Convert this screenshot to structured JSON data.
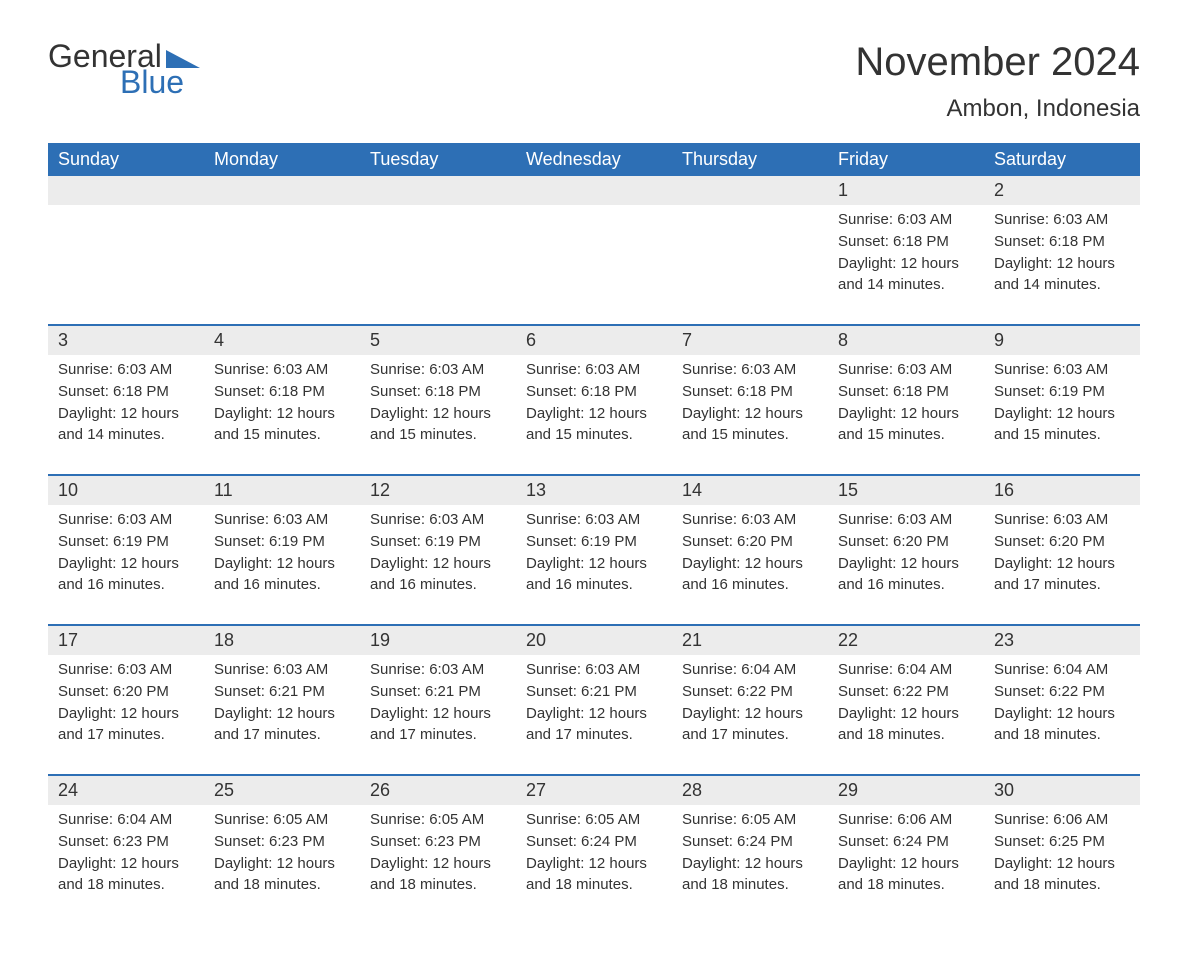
{
  "logo": {
    "general": "General",
    "blue": "Blue",
    "shape_color": "#2d6fb5"
  },
  "title": "November 2024",
  "location": "Ambon, Indonesia",
  "header_bg": "#2d6fb5",
  "weekdays": [
    "Sunday",
    "Monday",
    "Tuesday",
    "Wednesday",
    "Thursday",
    "Friday",
    "Saturday"
  ],
  "weeks": [
    {
      "days": [
        {
          "num": "",
          "sunrise": "",
          "sunset": "",
          "daylight": ""
        },
        {
          "num": "",
          "sunrise": "",
          "sunset": "",
          "daylight": ""
        },
        {
          "num": "",
          "sunrise": "",
          "sunset": "",
          "daylight": ""
        },
        {
          "num": "",
          "sunrise": "",
          "sunset": "",
          "daylight": ""
        },
        {
          "num": "",
          "sunrise": "",
          "sunset": "",
          "daylight": ""
        },
        {
          "num": "1",
          "sunrise": "Sunrise: 6:03 AM",
          "sunset": "Sunset: 6:18 PM",
          "daylight": "Daylight: 12 hours and 14 minutes."
        },
        {
          "num": "2",
          "sunrise": "Sunrise: 6:03 AM",
          "sunset": "Sunset: 6:18 PM",
          "daylight": "Daylight: 12 hours and 14 minutes."
        }
      ]
    },
    {
      "days": [
        {
          "num": "3",
          "sunrise": "Sunrise: 6:03 AM",
          "sunset": "Sunset: 6:18 PM",
          "daylight": "Daylight: 12 hours and 14 minutes."
        },
        {
          "num": "4",
          "sunrise": "Sunrise: 6:03 AM",
          "sunset": "Sunset: 6:18 PM",
          "daylight": "Daylight: 12 hours and 15 minutes."
        },
        {
          "num": "5",
          "sunrise": "Sunrise: 6:03 AM",
          "sunset": "Sunset: 6:18 PM",
          "daylight": "Daylight: 12 hours and 15 minutes."
        },
        {
          "num": "6",
          "sunrise": "Sunrise: 6:03 AM",
          "sunset": "Sunset: 6:18 PM",
          "daylight": "Daylight: 12 hours and 15 minutes."
        },
        {
          "num": "7",
          "sunrise": "Sunrise: 6:03 AM",
          "sunset": "Sunset: 6:18 PM",
          "daylight": "Daylight: 12 hours and 15 minutes."
        },
        {
          "num": "8",
          "sunrise": "Sunrise: 6:03 AM",
          "sunset": "Sunset: 6:18 PM",
          "daylight": "Daylight: 12 hours and 15 minutes."
        },
        {
          "num": "9",
          "sunrise": "Sunrise: 6:03 AM",
          "sunset": "Sunset: 6:19 PM",
          "daylight": "Daylight: 12 hours and 15 minutes."
        }
      ]
    },
    {
      "days": [
        {
          "num": "10",
          "sunrise": "Sunrise: 6:03 AM",
          "sunset": "Sunset: 6:19 PM",
          "daylight": "Daylight: 12 hours and 16 minutes."
        },
        {
          "num": "11",
          "sunrise": "Sunrise: 6:03 AM",
          "sunset": "Sunset: 6:19 PM",
          "daylight": "Daylight: 12 hours and 16 minutes."
        },
        {
          "num": "12",
          "sunrise": "Sunrise: 6:03 AM",
          "sunset": "Sunset: 6:19 PM",
          "daylight": "Daylight: 12 hours and 16 minutes."
        },
        {
          "num": "13",
          "sunrise": "Sunrise: 6:03 AM",
          "sunset": "Sunset: 6:19 PM",
          "daylight": "Daylight: 12 hours and 16 minutes."
        },
        {
          "num": "14",
          "sunrise": "Sunrise: 6:03 AM",
          "sunset": "Sunset: 6:20 PM",
          "daylight": "Daylight: 12 hours and 16 minutes."
        },
        {
          "num": "15",
          "sunrise": "Sunrise: 6:03 AM",
          "sunset": "Sunset: 6:20 PM",
          "daylight": "Daylight: 12 hours and 16 minutes."
        },
        {
          "num": "16",
          "sunrise": "Sunrise: 6:03 AM",
          "sunset": "Sunset: 6:20 PM",
          "daylight": "Daylight: 12 hours and 17 minutes."
        }
      ]
    },
    {
      "days": [
        {
          "num": "17",
          "sunrise": "Sunrise: 6:03 AM",
          "sunset": "Sunset: 6:20 PM",
          "daylight": "Daylight: 12 hours and 17 minutes."
        },
        {
          "num": "18",
          "sunrise": "Sunrise: 6:03 AM",
          "sunset": "Sunset: 6:21 PM",
          "daylight": "Daylight: 12 hours and 17 minutes."
        },
        {
          "num": "19",
          "sunrise": "Sunrise: 6:03 AM",
          "sunset": "Sunset: 6:21 PM",
          "daylight": "Daylight: 12 hours and 17 minutes."
        },
        {
          "num": "20",
          "sunrise": "Sunrise: 6:03 AM",
          "sunset": "Sunset: 6:21 PM",
          "daylight": "Daylight: 12 hours and 17 minutes."
        },
        {
          "num": "21",
          "sunrise": "Sunrise: 6:04 AM",
          "sunset": "Sunset: 6:22 PM",
          "daylight": "Daylight: 12 hours and 17 minutes."
        },
        {
          "num": "22",
          "sunrise": "Sunrise: 6:04 AM",
          "sunset": "Sunset: 6:22 PM",
          "daylight": "Daylight: 12 hours and 18 minutes."
        },
        {
          "num": "23",
          "sunrise": "Sunrise: 6:04 AM",
          "sunset": "Sunset: 6:22 PM",
          "daylight": "Daylight: 12 hours and 18 minutes."
        }
      ]
    },
    {
      "days": [
        {
          "num": "24",
          "sunrise": "Sunrise: 6:04 AM",
          "sunset": "Sunset: 6:23 PM",
          "daylight": "Daylight: 12 hours and 18 minutes."
        },
        {
          "num": "25",
          "sunrise": "Sunrise: 6:05 AM",
          "sunset": "Sunset: 6:23 PM",
          "daylight": "Daylight: 12 hours and 18 minutes."
        },
        {
          "num": "26",
          "sunrise": "Sunrise: 6:05 AM",
          "sunset": "Sunset: 6:23 PM",
          "daylight": "Daylight: 12 hours and 18 minutes."
        },
        {
          "num": "27",
          "sunrise": "Sunrise: 6:05 AM",
          "sunset": "Sunset: 6:24 PM",
          "daylight": "Daylight: 12 hours and 18 minutes."
        },
        {
          "num": "28",
          "sunrise": "Sunrise: 6:05 AM",
          "sunset": "Sunset: 6:24 PM",
          "daylight": "Daylight: 12 hours and 18 minutes."
        },
        {
          "num": "29",
          "sunrise": "Sunrise: 6:06 AM",
          "sunset": "Sunset: 6:24 PM",
          "daylight": "Daylight: 12 hours and 18 minutes."
        },
        {
          "num": "30",
          "sunrise": "Sunrise: 6:06 AM",
          "sunset": "Sunset: 6:25 PM",
          "daylight": "Daylight: 12 hours and 18 minutes."
        }
      ]
    }
  ]
}
